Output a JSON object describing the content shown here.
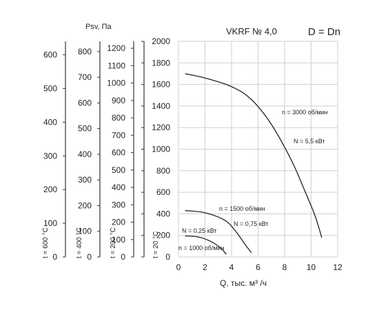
{
  "chart_data": {
    "type": "line",
    "title": "VKRF № 4,0",
    "title_right": "D = Dn",
    "ylabel": "Psv, Па",
    "xlabel": "Q, тыс. м³ /ч",
    "xlim": [
      0,
      12
    ],
    "ylim": [
      0,
      2000
    ],
    "x_ticks": [
      0,
      2,
      4,
      6,
      8,
      10,
      12
    ],
    "y_ticks": [
      0,
      200,
      400,
      600,
      800,
      1000,
      1200,
      1400,
      1600,
      1800,
      2000
    ],
    "grid": true,
    "secondary_axes": [
      {
        "label": "t = 600 °C",
        "ticks": [
          0,
          100,
          200,
          300,
          400,
          500,
          600
        ]
      },
      {
        "label": "t = 400 °C",
        "ticks": [
          0,
          100,
          200,
          300,
          400,
          500,
          600,
          700,
          800
        ]
      },
      {
        "label": "t = 200 °C",
        "ticks": [
          0,
          100,
          200,
          300,
          400,
          500,
          600,
          700,
          800,
          900,
          1000,
          1100,
          1200
        ]
      },
      {
        "label": "t = 20 °C",
        "ticks": []
      }
    ],
    "series": [
      {
        "name": "n = 3000 об/мин",
        "power": "N = 5,5 кВт",
        "x": [
          0.5,
          2,
          4,
          5.5,
          7,
          8.5,
          9.5,
          10.3,
          10.8
        ],
        "y": [
          1700,
          1660,
          1580,
          1460,
          1230,
          900,
          620,
          380,
          180
        ]
      },
      {
        "name": "n = 1500 об/мин",
        "power": "N = 0,75 кВт",
        "x": [
          0.5,
          2,
          3.5,
          4.3,
          5,
          5.5
        ],
        "y": [
          430,
          410,
          340,
          240,
          120,
          40
        ]
      },
      {
        "name": "n = 1000 об/мин",
        "power": "N = 0,25 кВт",
        "x": [
          0.5,
          1.5,
          2.5,
          3.2,
          3.6
        ],
        "y": [
          195,
          185,
          140,
          80,
          25
        ]
      }
    ]
  }
}
